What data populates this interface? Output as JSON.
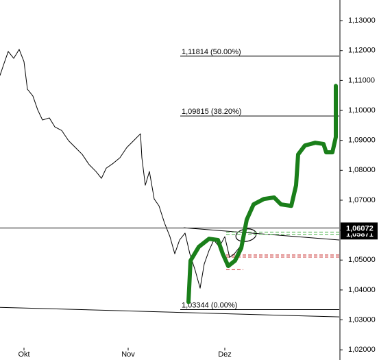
{
  "chart_data": {
    "type": "line",
    "xlim": [
      0,
      495
    ],
    "ylim": [
      1.0166,
      1.1369
    ],
    "xticks": [
      {
        "value": 35,
        "label": "Okt"
      },
      {
        "value": 187,
        "label": "Nov"
      },
      {
        "value": 328,
        "label": "Dez"
      }
    ],
    "yticks": [
      {
        "value": 1.02,
        "label": "1,02000"
      },
      {
        "value": 1.03,
        "label": "1,03000"
      },
      {
        "value": 1.04,
        "label": "1,04000"
      },
      {
        "value": 1.05,
        "label": "1,05000"
      },
      {
        "value": 1.06,
        "label": "1,06000"
      },
      {
        "value": 1.07,
        "label": "1,07000"
      },
      {
        "value": 1.08,
        "label": "1,08000"
      },
      {
        "value": 1.09,
        "label": "1,09000"
      },
      {
        "value": 1.1,
        "label": "1,10000"
      },
      {
        "value": 1.11,
        "label": "1,11000"
      },
      {
        "value": 1.12,
        "label": "1,12000"
      },
      {
        "value": 1.13,
        "label": "1,13000"
      }
    ],
    "series": [
      {
        "color": "#000000",
        "width": 1,
        "x": [
          0,
          5,
          12,
          20,
          28,
          35,
          40,
          48,
          55,
          62,
          72,
          80,
          90,
          100,
          110,
          120,
          130,
          140,
          148,
          155,
          165,
          175,
          185,
          195,
          205,
          207,
          212,
          218,
          225,
          232,
          240,
          248,
          255,
          262,
          270,
          277,
          285,
          292,
          298,
          305,
          312,
          320,
          328,
          335,
          342,
          350,
          356
        ],
        "values": [
          1.1117,
          1.1151,
          1.1197,
          1.1174,
          1.1204,
          1.1163,
          1.1071,
          1.1048,
          1.1002,
          1.0968,
          1.0975,
          1.0945,
          1.0933,
          1.0899,
          1.0876,
          1.0853,
          1.0819,
          1.0796,
          1.0773,
          1.0807,
          1.0823,
          1.0842,
          1.0876,
          1.0899,
          1.0922,
          1.0842,
          1.075,
          1.0796,
          1.0704,
          1.0681,
          1.0624,
          1.0578,
          1.0521,
          1.0567,
          1.059,
          1.0521,
          1.0464,
          1.0406,
          1.0487,
          1.0532,
          1.0567,
          1.0544,
          1.0578,
          1.0509,
          1.0521,
          1.0544,
          1.059
        ]
      },
      {
        "color": "#1a7f1a",
        "width": 6,
        "x": [
          275,
          278,
          290,
          305,
          318,
          325,
          333,
          343,
          352,
          360,
          370,
          385,
          400,
          410,
          425,
          432,
          435,
          445,
          460,
          472,
          476,
          485,
          490,
          490
        ],
        "values": [
          1.036,
          1.0498,
          1.0544,
          1.0571,
          1.0567,
          1.0521,
          1.048,
          1.0498,
          1.054,
          1.0635,
          1.0686,
          1.0704,
          1.0709,
          1.0686,
          1.0681,
          1.075,
          1.0853,
          1.0883,
          1.0892,
          1.0888,
          1.086,
          1.086,
          1.0911,
          1.1082
        ]
      }
    ],
    "lines": [
      {
        "x": [
          0,
          495
        ],
        "values": [
          1.06072,
          1.06072
        ],
        "color": "#000000",
        "dash": false
      },
      {
        "x": [
          0,
          495
        ],
        "values": [
          1.0342,
          1.031
        ],
        "color": "#000000",
        "dash": false
      },
      {
        "x": [
          268,
          495
        ],
        "values": [
          1.0608,
          1.0567
        ],
        "color": "#000000",
        "dash": false
      },
      {
        "x": [
          330,
          495
        ],
        "values": [
          1.0593,
          1.0593
        ],
        "color": "#7fc97f",
        "dash": true
      },
      {
        "x": [
          330,
          495
        ],
        "values": [
          1.0586,
          1.0586
        ],
        "color": "#7fc97f",
        "dash": true
      },
      {
        "x": [
          330,
          495
        ],
        "values": [
          1.0517,
          1.0517
        ],
        "color": "#d66666",
        "dash": true
      },
      {
        "x": [
          330,
          495
        ],
        "values": [
          1.051,
          1.051
        ],
        "color": "#d66666",
        "dash": true
      },
      {
        "x": [
          330,
          355
        ],
        "values": [
          1.0468,
          1.0468
        ],
        "color": "#d66666",
        "dash": true
      }
    ],
    "fib_levels": [
      {
        "value": 1.11814,
        "label": "1,11814 (50.00%)",
        "x": [
          263,
          495
        ]
      },
      {
        "value": 1.09815,
        "label": "1,09815 (38.20%)",
        "x": [
          263,
          495
        ]
      },
      {
        "value": 1.03344,
        "label": "1,03344 (0.00%)",
        "x": [
          263,
          495
        ]
      }
    ],
    "price_labels": [
      {
        "value": 1.05871,
        "label": "1,05871"
      },
      {
        "value": 1.06072,
        "label": "1,06072"
      }
    ]
  }
}
